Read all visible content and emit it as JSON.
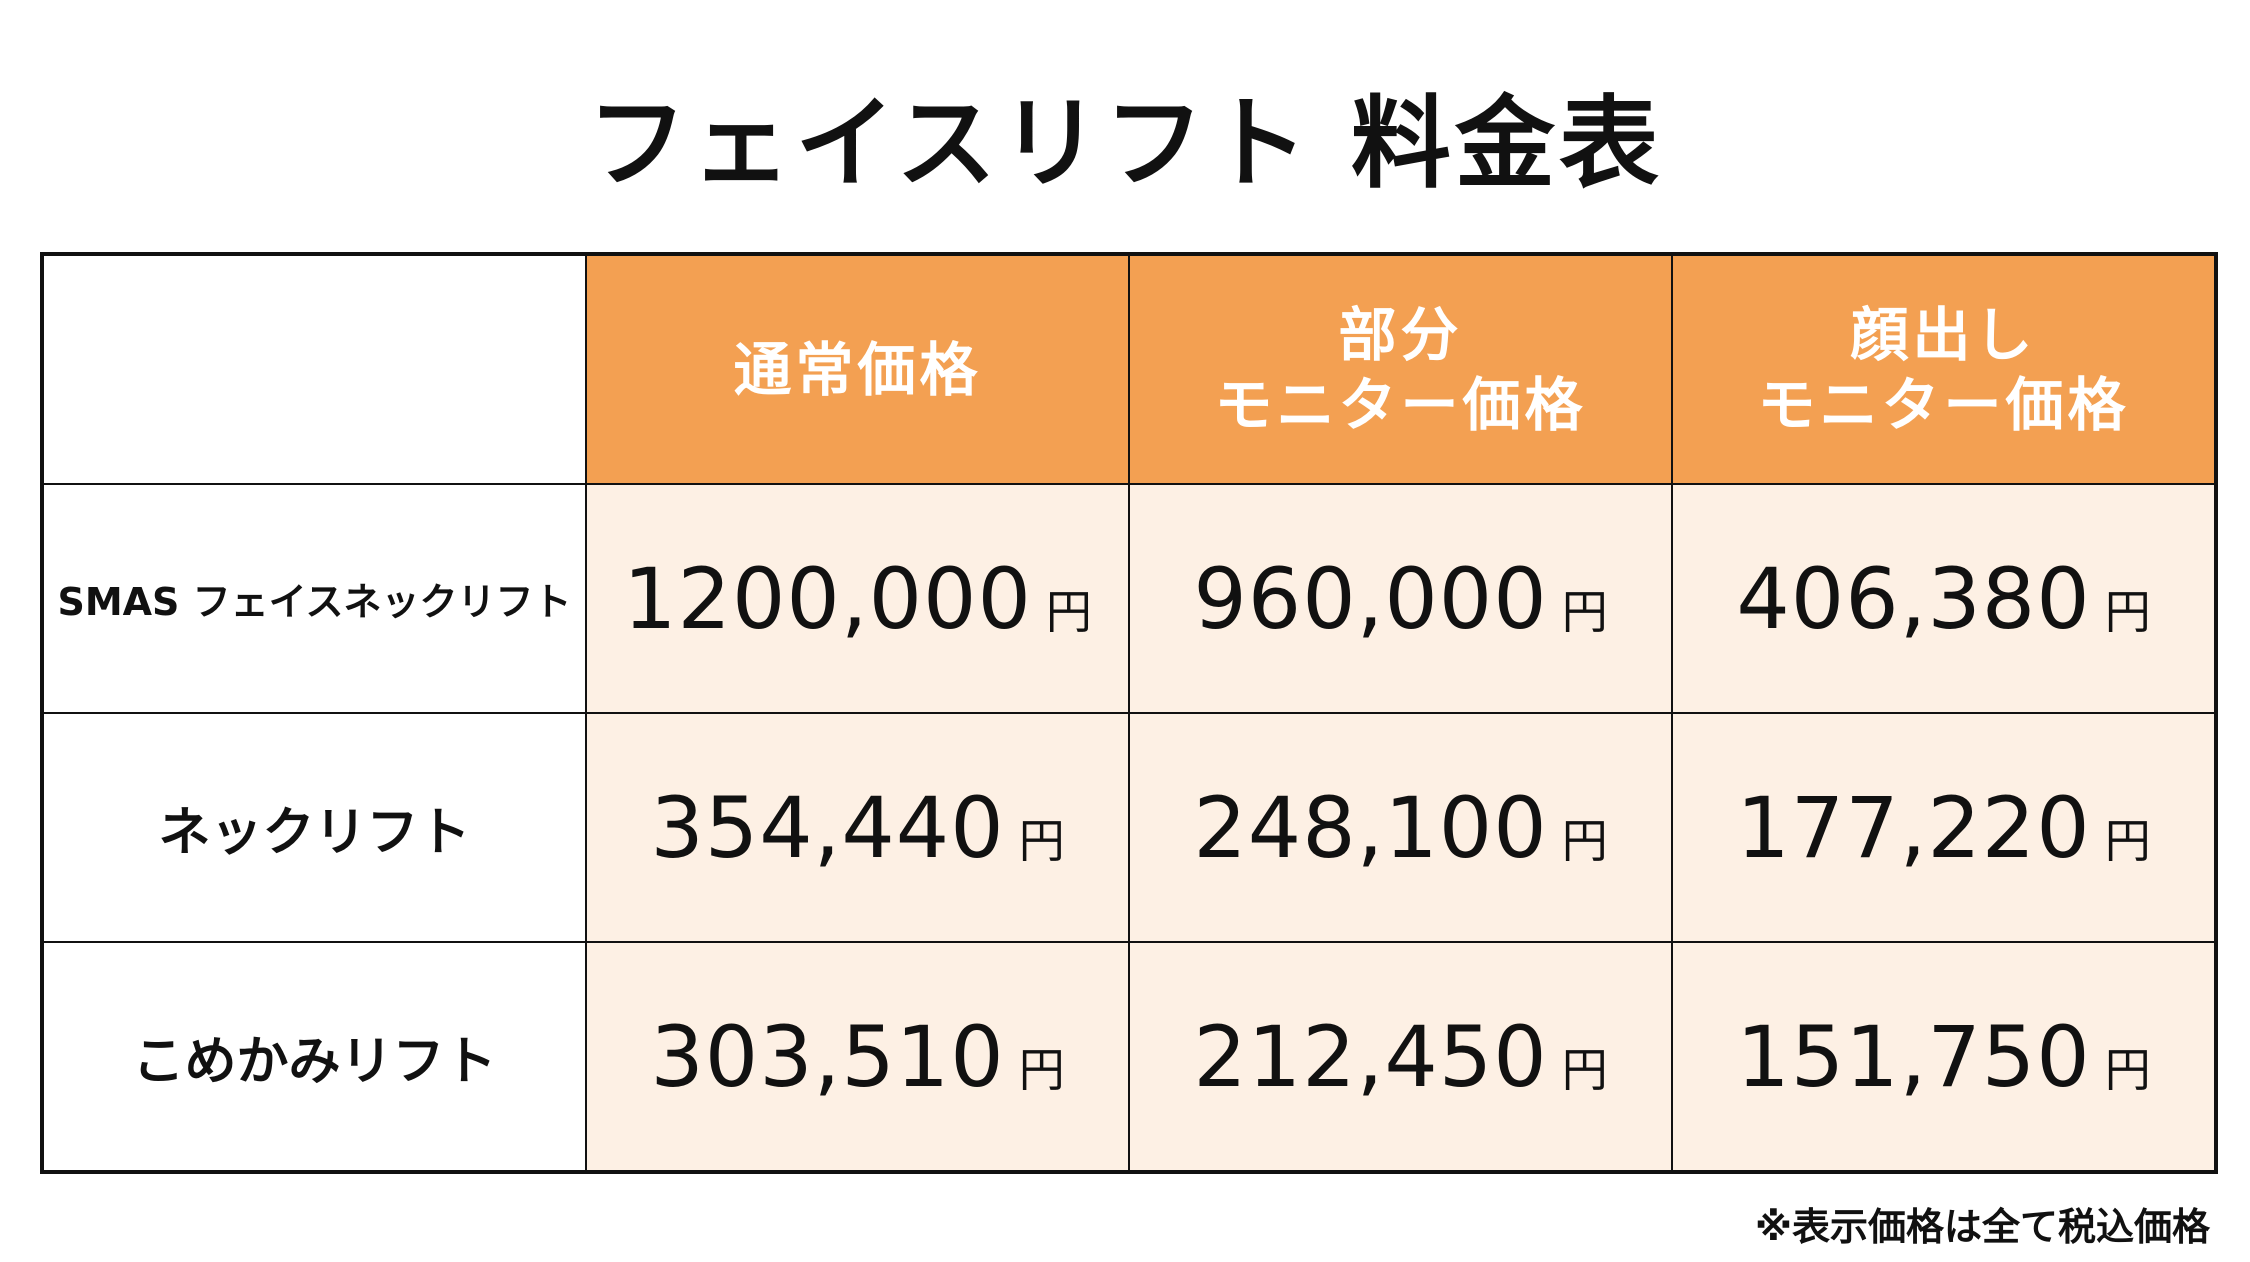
{
  "title": "フェイスリフト 料金表",
  "table": {
    "header": [
      [
        "通常価格"
      ],
      [
        "部分",
        "モニター価格"
      ],
      [
        "顔出し",
        "モニター価格"
      ]
    ],
    "unit": "円",
    "rows": [
      {
        "label": "SMAS フェイスネックリフト",
        "prices": [
          "1200,000",
          "960,000",
          "406,380"
        ]
      },
      {
        "label": "ネックリフト",
        "prices": [
          "354,440",
          "248,100",
          "177,220"
        ]
      },
      {
        "label": "こめかみリフト",
        "prices": [
          "303,510",
          "212,450",
          "151,750"
        ]
      }
    ]
  },
  "footnote": "※表示価格は全て税込価格"
}
